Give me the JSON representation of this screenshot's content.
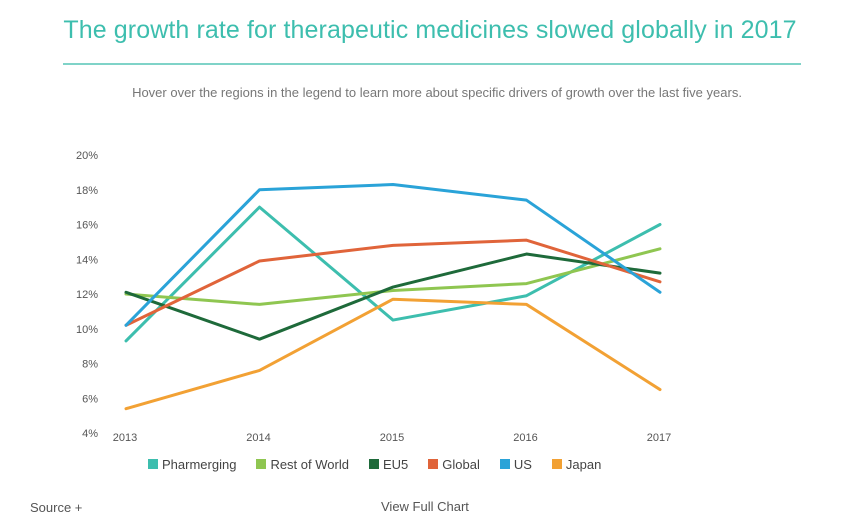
{
  "header": {
    "title": "The growth rate for therapeutic medicines slowed globally in 2017",
    "subtitle": "Hover over the regions in the legend to learn more about specific drivers of growth over the last five years."
  },
  "chart_data": {
    "type": "line",
    "x": [
      "2013",
      "2014",
      "2015",
      "2016",
      "2017"
    ],
    "ylim": [
      4,
      20
    ],
    "yticks": [
      4,
      6,
      8,
      10,
      12,
      14,
      16,
      18,
      20
    ],
    "ytick_labels": [
      "4%",
      "6%",
      "8%",
      "10%",
      "12%",
      "14%",
      "16%",
      "18%",
      "20%"
    ],
    "series": [
      {
        "name": "Pharmerging",
        "color": "#3dbeae",
        "values": [
          9.3,
          17.0,
          10.5,
          11.9,
          16.0
        ]
      },
      {
        "name": "Rest of World",
        "color": "#8fc651",
        "values": [
          12.0,
          11.4,
          12.2,
          12.6,
          14.6
        ]
      },
      {
        "name": "EU5",
        "color": "#1e6a3a",
        "values": [
          12.1,
          9.4,
          12.4,
          14.3,
          13.2
        ]
      },
      {
        "name": "Global",
        "color": "#e0643a",
        "values": [
          10.2,
          13.9,
          14.8,
          15.1,
          12.7
        ]
      },
      {
        "name": "US",
        "color": "#2aa3d8",
        "values": [
          10.2,
          18.0,
          18.3,
          17.4,
          12.1
        ]
      },
      {
        "name": "Japan",
        "color": "#f2a134",
        "values": [
          5.4,
          7.6,
          11.7,
          11.4,
          6.5
        ]
      }
    ],
    "grid": false,
    "legend_position": "bottom"
  },
  "footer": {
    "source_label": "Source +",
    "view_full_label": "View Full Chart"
  }
}
